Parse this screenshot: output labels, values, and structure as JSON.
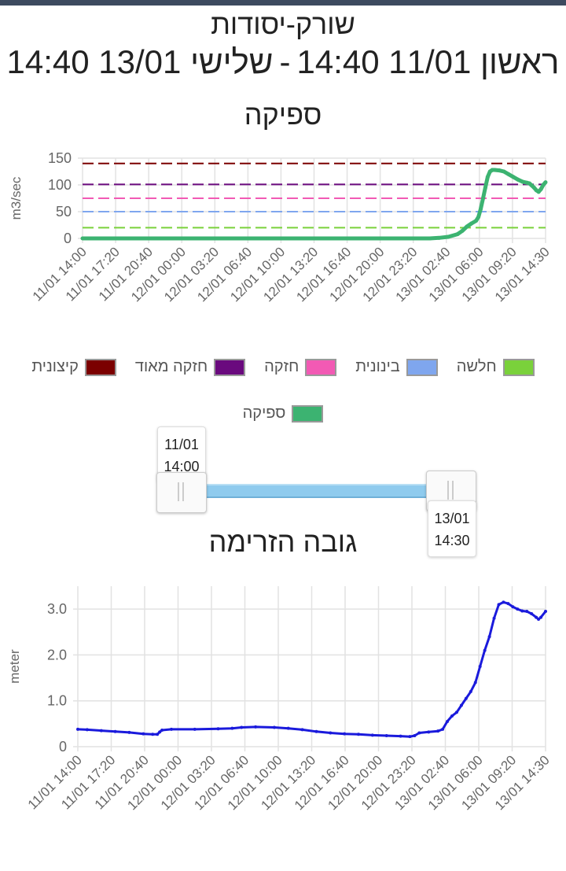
{
  "header": {
    "station": "שורק-יסודות",
    "range_start": "ראשון 11/01 14:40",
    "range_sep": "-",
    "range_end": "שלישי 13/01 14:40"
  },
  "colors": {
    "extreme": "#7b0000",
    "very_strong": "#6a0a7e",
    "strong": "#f25ab4",
    "medium": "#7fa6ee",
    "weak": "#7ad13b",
    "flow": "#3cb371",
    "level": "#1a1adc"
  },
  "time_labels": [
    "11/01 14:00",
    "11/01 17:20",
    "11/01 20:40",
    "12/01 00:00",
    "12/01 03:20",
    "12/01 06:40",
    "12/01 10:00",
    "12/01 13:20",
    "12/01 16:40",
    "12/01 20:00",
    "12/01 23:20",
    "13/01 02:40",
    "13/01 06:00",
    "13/01 09:20",
    "13/01 14:30"
  ],
  "flow_chart": {
    "title": "ספיקה",
    "ylabel": "m3/sec",
    "y_ticks": [
      "0",
      "50",
      "100",
      "150"
    ],
    "legend": [
      {
        "label": "חלשה",
        "color": "#7ad13b"
      },
      {
        "label": "בינונית",
        "color": "#7fa6ee"
      },
      {
        "label": "חזקה",
        "color": "#f25ab4"
      },
      {
        "label": "חזקה מאוד",
        "color": "#6a0a7e"
      },
      {
        "label": "קיצונית",
        "color": "#7b0000"
      },
      {
        "label": "ספיקה",
        "color": "#3cb371"
      }
    ]
  },
  "slider": {
    "start_date": "11/01",
    "start_time": "14:00",
    "end_date": "13/01",
    "end_time": "14:30"
  },
  "level_chart": {
    "title": "גובה הזרימה",
    "ylabel": "meter",
    "y_ticks": [
      "0",
      "1.0",
      "2.0",
      "3.0"
    ]
  },
  "chart_data": [
    {
      "type": "line",
      "title": "ספיקה",
      "ylabel": "m3/sec",
      "ylim": [
        0,
        150
      ],
      "x": [
        "11/01 14:00",
        "11/01 17:20",
        "11/01 20:40",
        "12/01 00:00",
        "12/01 03:20",
        "12/01 06:40",
        "12/01 10:00",
        "12/01 13:20",
        "12/01 16:40",
        "12/01 20:00",
        "12/01 23:20",
        "13/01 02:40",
        "13/01 06:00",
        "13/01 09:20",
        "13/01 14:30"
      ],
      "grid": true,
      "thresholds": [
        {
          "name": "חלשה",
          "value": 20
        },
        {
          "name": "בינונית",
          "value": 50
        },
        {
          "name": "חזקה",
          "value": 75
        },
        {
          "name": "חזקה מאוד",
          "value": 101
        },
        {
          "name": "קיצונית",
          "value": 140
        }
      ],
      "series": [
        {
          "name": "ספיקה",
          "points": [
            [
              0,
              0
            ],
            [
              0.01,
              0
            ],
            [
              0.2,
              0
            ],
            [
              0.4,
              0
            ],
            [
              0.6,
              0
            ],
            [
              0.75,
              0
            ],
            [
              0.77,
              1
            ],
            [
              0.79,
              3
            ],
            [
              0.81,
              8
            ],
            [
              0.82,
              14
            ],
            [
              0.83,
              22
            ],
            [
              0.84,
              28
            ],
            [
              0.85,
              33
            ],
            [
              0.855,
              40
            ],
            [
              0.86,
              55
            ],
            [
              0.865,
              75
            ],
            [
              0.87,
              95
            ],
            [
              0.875,
              115
            ],
            [
              0.88,
              125
            ],
            [
              0.885,
              128
            ],
            [
              0.89,
              128
            ],
            [
              0.9,
              127
            ],
            [
              0.91,
              125
            ],
            [
              0.92,
              120
            ],
            [
              0.93,
              115
            ],
            [
              0.94,
              110
            ],
            [
              0.95,
              106
            ],
            [
              0.96,
              104
            ],
            [
              0.965,
              103
            ],
            [
              0.97,
              99
            ],
            [
              0.975,
              95
            ],
            [
              0.98,
              90
            ],
            [
              0.985,
              87
            ],
            [
              0.99,
              92
            ],
            [
              0.995,
              100
            ],
            [
              1.0,
              105
            ]
          ]
        }
      ]
    },
    {
      "type": "line",
      "title": "גובה הזרימה",
      "ylabel": "meter",
      "ylim": [
        0,
        3.5
      ],
      "x": [
        "11/01 14:00",
        "11/01 17:20",
        "11/01 20:40",
        "12/01 00:00",
        "12/01 03:20",
        "12/01 06:40",
        "12/01 10:00",
        "12/01 13:20",
        "12/01 16:40",
        "12/01 20:00",
        "12/01 23:20",
        "13/01 02:40",
        "13/01 06:00",
        "13/01 09:20",
        "13/01 14:30"
      ],
      "grid": true,
      "series": [
        {
          "name": "",
          "points": [
            [
              0,
              0.38
            ],
            [
              0.02,
              0.37
            ],
            [
              0.05,
              0.35
            ],
            [
              0.08,
              0.33
            ],
            [
              0.11,
              0.31
            ],
            [
              0.14,
              0.28
            ],
            [
              0.16,
              0.27
            ],
            [
              0.17,
              0.27
            ],
            [
              0.175,
              0.32
            ],
            [
              0.18,
              0.36
            ],
            [
              0.2,
              0.38
            ],
            [
              0.25,
              0.38
            ],
            [
              0.3,
              0.39
            ],
            [
              0.33,
              0.4
            ],
            [
              0.35,
              0.42
            ],
            [
              0.38,
              0.43
            ],
            [
              0.42,
              0.42
            ],
            [
              0.45,
              0.4
            ],
            [
              0.48,
              0.37
            ],
            [
              0.51,
              0.33
            ],
            [
              0.54,
              0.3
            ],
            [
              0.57,
              0.28
            ],
            [
              0.6,
              0.27
            ],
            [
              0.63,
              0.25
            ],
            [
              0.66,
              0.24
            ],
            [
              0.69,
              0.23
            ],
            [
              0.71,
              0.22
            ],
            [
              0.72,
              0.24
            ],
            [
              0.73,
              0.3
            ],
            [
              0.75,
              0.32
            ],
            [
              0.77,
              0.34
            ],
            [
              0.78,
              0.38
            ],
            [
              0.79,
              0.55
            ],
            [
              0.8,
              0.67
            ],
            [
              0.81,
              0.75
            ],
            [
              0.82,
              0.9
            ],
            [
              0.83,
              1.05
            ],
            [
              0.84,
              1.2
            ],
            [
              0.85,
              1.4
            ],
            [
              0.86,
              1.75
            ],
            [
              0.87,
              2.1
            ],
            [
              0.88,
              2.4
            ],
            [
              0.89,
              2.8
            ],
            [
              0.9,
              3.1
            ],
            [
              0.91,
              3.15
            ],
            [
              0.92,
              3.12
            ],
            [
              0.93,
              3.05
            ],
            [
              0.94,
              3.0
            ],
            [
              0.95,
              2.96
            ],
            [
              0.96,
              2.95
            ],
            [
              0.97,
              2.9
            ],
            [
              0.98,
              2.82
            ],
            [
              0.985,
              2.78
            ],
            [
              0.99,
              2.82
            ],
            [
              1.0,
              2.95
            ]
          ]
        }
      ]
    }
  ]
}
